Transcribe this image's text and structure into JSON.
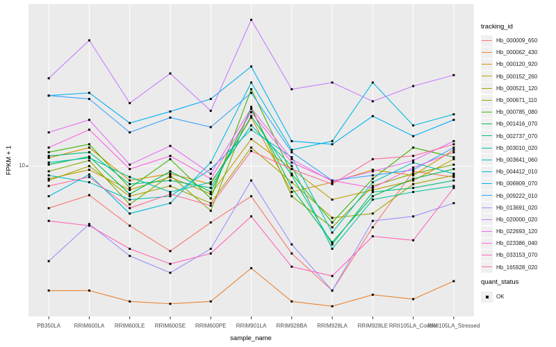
{
  "axes": {
    "x_title": "sample_name",
    "y_title": "FPKM + 1",
    "y_tick_label": "10"
  },
  "legend": {
    "tracking_title": "tracking_id",
    "quant_title": "quant_status",
    "quant_items": [
      {
        "label": "OK",
        "marker": "black-square"
      }
    ]
  },
  "chart_data": {
    "type": "line",
    "title": "",
    "xlabel": "sample_name",
    "ylabel": "FPKM + 1",
    "y_scale": "log10",
    "ylim": [
      1.26,
      93
    ],
    "y_axis_ticks": [
      {
        "value": 10,
        "label": "10"
      }
    ],
    "grid": "white gridlines on gray panel",
    "legend_position": "right",
    "point_marker": {
      "shape": "square",
      "color": "#000000",
      "meaning": "quant_status OK"
    },
    "style": {
      "panel_background": "#EBEBEB",
      "grid_color": "#FFFFFF",
      "tick_color": "#333333",
      "axis_text_color": "#4D4D4D"
    },
    "categories": [
      "PB350LA",
      "RRIM600LA",
      "RRIM600LE",
      "RRIM600SE",
      "RRIM600PE",
      "RRIM901LA",
      "RRIM928BA",
      "RRIM928LA",
      "RRIM928LE",
      "RRII105LA_Control",
      "RRII105LA_Stressed"
    ],
    "series": [
      {
        "name": "Hb_000009_650",
        "color": "#F8766D",
        "values": [
          5.6,
          6.7,
          4.4,
          3.1,
          4.6,
          6.6,
          3.0,
          1.8,
          4.3,
          9.3,
          8.6
        ]
      },
      {
        "name": "Hb_000062_430",
        "color": "#EA8331",
        "values": [
          1.8,
          1.8,
          1.55,
          1.5,
          1.55,
          2.45,
          1.55,
          1.45,
          1.7,
          1.6,
          2.05
        ]
      },
      {
        "name": "Hb_000120_920",
        "color": "#D89000",
        "values": [
          11.2,
          12.9,
          8.2,
          9.0,
          7.8,
          19.5,
          7.0,
          8.0,
          9.5,
          8.8,
          12.5
        ]
      },
      {
        "name": "Hb_000152_260",
        "color": "#C09B00",
        "values": [
          8.4,
          9.5,
          7.2,
          8.6,
          6.8,
          14.5,
          9.6,
          6.3,
          7.2,
          8.2,
          11.0
        ]
      },
      {
        "name": "Hb_000521_120",
        "color": "#A3A500",
        "values": [
          8.2,
          10.0,
          6.6,
          7.6,
          6.0,
          12.9,
          8.0,
          4.9,
          5.2,
          7.8,
          8.8
        ]
      },
      {
        "name": "Hb_000671_110",
        "color": "#7CAE00",
        "values": [
          9.3,
          10.8,
          5.9,
          8.8,
          5.4,
          22.6,
          6.6,
          4.3,
          7.6,
          9.0,
          10.2
        ]
      },
      {
        "name": "Hb_000785_080",
        "color": "#39B600",
        "values": [
          12.1,
          13.5,
          7.4,
          11.0,
          6.4,
          28.8,
          9.0,
          4.6,
          8.4,
          12.9,
          11.3
        ]
      },
      {
        "name": "Hb_001416_070",
        "color": "#00BB4E",
        "values": [
          10.2,
          11.4,
          6.8,
          9.3,
          7.0,
          22.0,
          7.4,
          3.5,
          6.6,
          8.4,
          9.6
        ]
      },
      {
        "name": "Hb_002737_070",
        "color": "#00BF7D",
        "values": [
          11.5,
          12.1,
          7.8,
          8.2,
          7.4,
          19.9,
          8.8,
          3.4,
          7.0,
          7.4,
          8.2
        ]
      },
      {
        "name": "Hb_003010_020",
        "color": "#00C1A3",
        "values": [
          10.5,
          11.2,
          8.6,
          7.0,
          8.0,
          17.5,
          10.0,
          3.2,
          6.3,
          7.0,
          7.6
        ]
      },
      {
        "name": "Hb_003641_060",
        "color": "#00BFC4",
        "values": [
          8.8,
          8.0,
          6.3,
          6.6,
          9.6,
          16.5,
          11.3,
          4.0,
          8.0,
          10.5,
          9.0
        ]
      },
      {
        "name": "Hb_004412_010",
        "color": "#00BAE0",
        "values": [
          6.6,
          8.9,
          5.2,
          6.0,
          10.5,
          31.6,
          12.5,
          14.1,
          31.6,
          17.5,
          20.4
        ]
      },
      {
        "name": "Hb_006909_070",
        "color": "#00B0F6",
        "values": [
          26.4,
          27.4,
          18.1,
          21.2,
          25.2,
          39.4,
          14.1,
          13.5,
          19.9,
          15.1,
          18.9
        ]
      },
      {
        "name": "Hb_009222_010",
        "color": "#35A2FF",
        "values": [
          26.4,
          25.2,
          15.9,
          19.5,
          17.1,
          27.4,
          12.1,
          8.2,
          8.8,
          9.5,
          12.9
        ]
      },
      {
        "name": "Hb_013691_020",
        "color": "#9590FF",
        "values": [
          2.7,
          4.5,
          2.9,
          2.3,
          3.2,
          8.2,
          3.4,
          1.8,
          4.7,
          5.0,
          6.0
        ]
      },
      {
        "name": "Hb_020000_020",
        "color": "#C77CFF",
        "values": [
          33.5,
          56.5,
          23.8,
          35.8,
          21.4,
          75.0,
          28.8,
          31.6,
          24.4,
          30.1,
          35.0
        ]
      },
      {
        "name": "Hb_022693_120",
        "color": "#E76BF3",
        "values": [
          15.9,
          18.9,
          10.2,
          13.2,
          9.0,
          22.2,
          11.0,
          8.1,
          9.3,
          10.8,
          14.1
        ]
      },
      {
        "name": "Hb_023386_040",
        "color": "#FA62DB",
        "values": [
          12.9,
          16.5,
          9.6,
          11.5,
          8.4,
          21.0,
          10.5,
          8.2,
          7.4,
          9.8,
          12.1
        ]
      },
      {
        "name": "Hb_033153_070",
        "color": "#FF62BC",
        "values": [
          4.7,
          4.4,
          3.2,
          2.6,
          3.0,
          5.0,
          2.5,
          2.2,
          3.8,
          3.6,
          7.4
        ]
      },
      {
        "name": "Hb_165928_020",
        "color": "#FF6A98",
        "values": [
          7.6,
          8.6,
          5.6,
          6.8,
          5.8,
          12.3,
          9.6,
          7.8,
          11.0,
          11.5,
          13.5
        ]
      }
    ]
  }
}
